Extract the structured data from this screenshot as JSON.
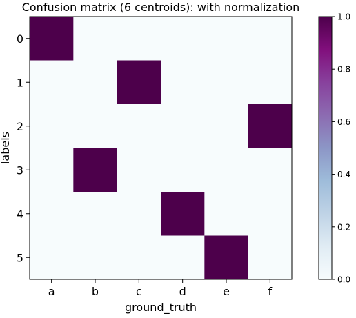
{
  "chart_data": {
    "type": "heatmap",
    "title": "Confusion matrix (6 centroids):  with normalization",
    "xlabel": "ground_truth",
    "ylabel": "labels",
    "x_categories": [
      "a",
      "b",
      "c",
      "d",
      "e",
      "f"
    ],
    "y_categories": [
      "0",
      "1",
      "2",
      "3",
      "4",
      "5"
    ],
    "values": [
      [
        1,
        0,
        0,
        0,
        0,
        0
      ],
      [
        0,
        0,
        1,
        0,
        0,
        0
      ],
      [
        0,
        0,
        0,
        0,
        0,
        1
      ],
      [
        0,
        1,
        0,
        0,
        0,
        0
      ],
      [
        0,
        0,
        0,
        1,
        0,
        0
      ],
      [
        0,
        0,
        0,
        0,
        1,
        0
      ]
    ],
    "vmin": 0.0,
    "vmax": 1.0,
    "colormap": "BuPu",
    "colormap_low": "#f7fcfd",
    "colormap_high": "#4d004b",
    "colorbar_ticks": [
      "0.0",
      "0.2",
      "0.4",
      "0.6",
      "0.8",
      "1.0"
    ],
    "grid": false,
    "legend": "colorbar-right"
  }
}
